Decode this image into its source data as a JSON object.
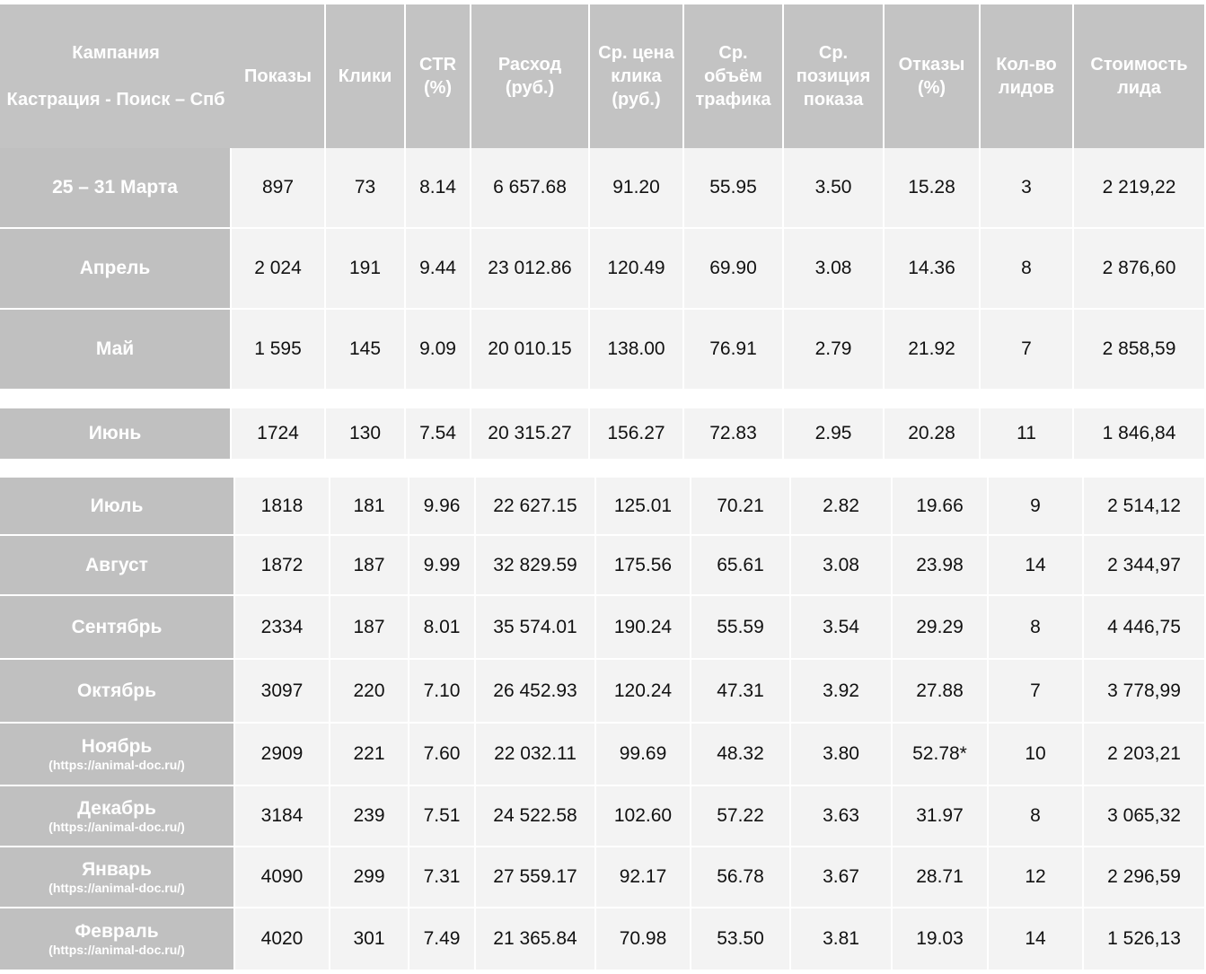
{
  "header": {
    "campaign_label": "Кампания",
    "campaign_name": "Кастрация - Поиск – Спб",
    "columns": [
      "Показы",
      "Клики",
      "CTR (%)",
      "Расход (руб.)",
      "Ср. цена клика (руб.)",
      "Ср. объём трафика",
      "Ср. позиция показа",
      "Отказы (%)",
      "Кол-во лидов",
      "Стоимость лида"
    ]
  },
  "blocks": [
    {
      "rows": [
        {
          "label": "25 – 31 Марта",
          "cells": [
            "897",
            "73",
            "8.14",
            "6 657.68",
            "91.20",
            "55.95",
            "3.50",
            "15.28",
            "3",
            "2 219,22"
          ]
        },
        {
          "label": "Апрель",
          "cells": [
            "2 024",
            "191",
            "9.44",
            "23 012.86",
            "120.49",
            "69.90",
            "3.08",
            "14.36",
            "8",
            "2 876,60"
          ]
        },
        {
          "label": "Май",
          "cells": [
            "1 595",
            "145",
            "9.09",
            "20 010.15",
            "138.00",
            "76.91",
            "2.79",
            "21.92",
            "7",
            "2 858,59"
          ]
        }
      ]
    },
    {
      "rows": [
        {
          "label": "Июнь",
          "cells": [
            "1724",
            "130",
            "7.54",
            "20 315.27",
            "156.27",
            "72.83",
            "2.95",
            "20.28",
            "11",
            "1 846,84"
          ]
        }
      ]
    },
    {
      "rows": [
        {
          "label": "Июль",
          "cells": [
            "1818",
            "181",
            "9.96",
            "22 627.15",
            "125.01",
            "70.21",
            "2.82",
            "19.66",
            "9",
            "2 514,12"
          ]
        },
        {
          "label": "Август",
          "cells": [
            "1872",
            "187",
            "9.99",
            "32 829.59",
            "175.56",
            "65.61",
            "3.08",
            "23.98",
            "14",
            "2 344,97"
          ]
        },
        {
          "label": "Сентябрь",
          "cells": [
            "2334",
            "187",
            "8.01",
            "35 574.01",
            "190.24",
            "55.59",
            "3.54",
            "29.29",
            "8",
            "4 446,75"
          ]
        },
        {
          "label": "Октябрь",
          "cells": [
            "3097",
            "220",
            "7.10",
            "26 452.93",
            "120.24",
            "47.31",
            "3.92",
            "27.88",
            "7",
            "3 778,99"
          ]
        },
        {
          "label": "Ноябрь",
          "sublabel": "(https://animal-doc.ru/)",
          "cells": [
            "2909",
            "221",
            "7.60",
            "22 032.11",
            "99.69",
            "48.32",
            "3.80",
            "52.78*",
            "10",
            "2 203,21"
          ]
        },
        {
          "label": "Декабрь",
          "sublabel": "(https://animal-doc.ru/)",
          "cells": [
            "3184",
            "239",
            "7.51",
            "24 522.58",
            "102.60",
            "57.22",
            "3.63",
            "31.97",
            "8",
            "3 065,32"
          ]
        },
        {
          "label": "Январь",
          "sublabel": "(https://animal-doc.ru/)",
          "cells": [
            "4090",
            "299",
            "7.31",
            "27 559.17",
            "92.17",
            "56.78",
            "3.67",
            "28.71",
            "12",
            "2 296,59"
          ]
        },
        {
          "label": "Февраль",
          "sublabel": "(https://animal-doc.ru/)",
          "cells": [
            "4020",
            "301",
            "7.49",
            "21 365.84",
            "70.98",
            "53.50",
            "3.81",
            "19.03",
            "14",
            "1 526,13"
          ]
        }
      ]
    }
  ]
}
